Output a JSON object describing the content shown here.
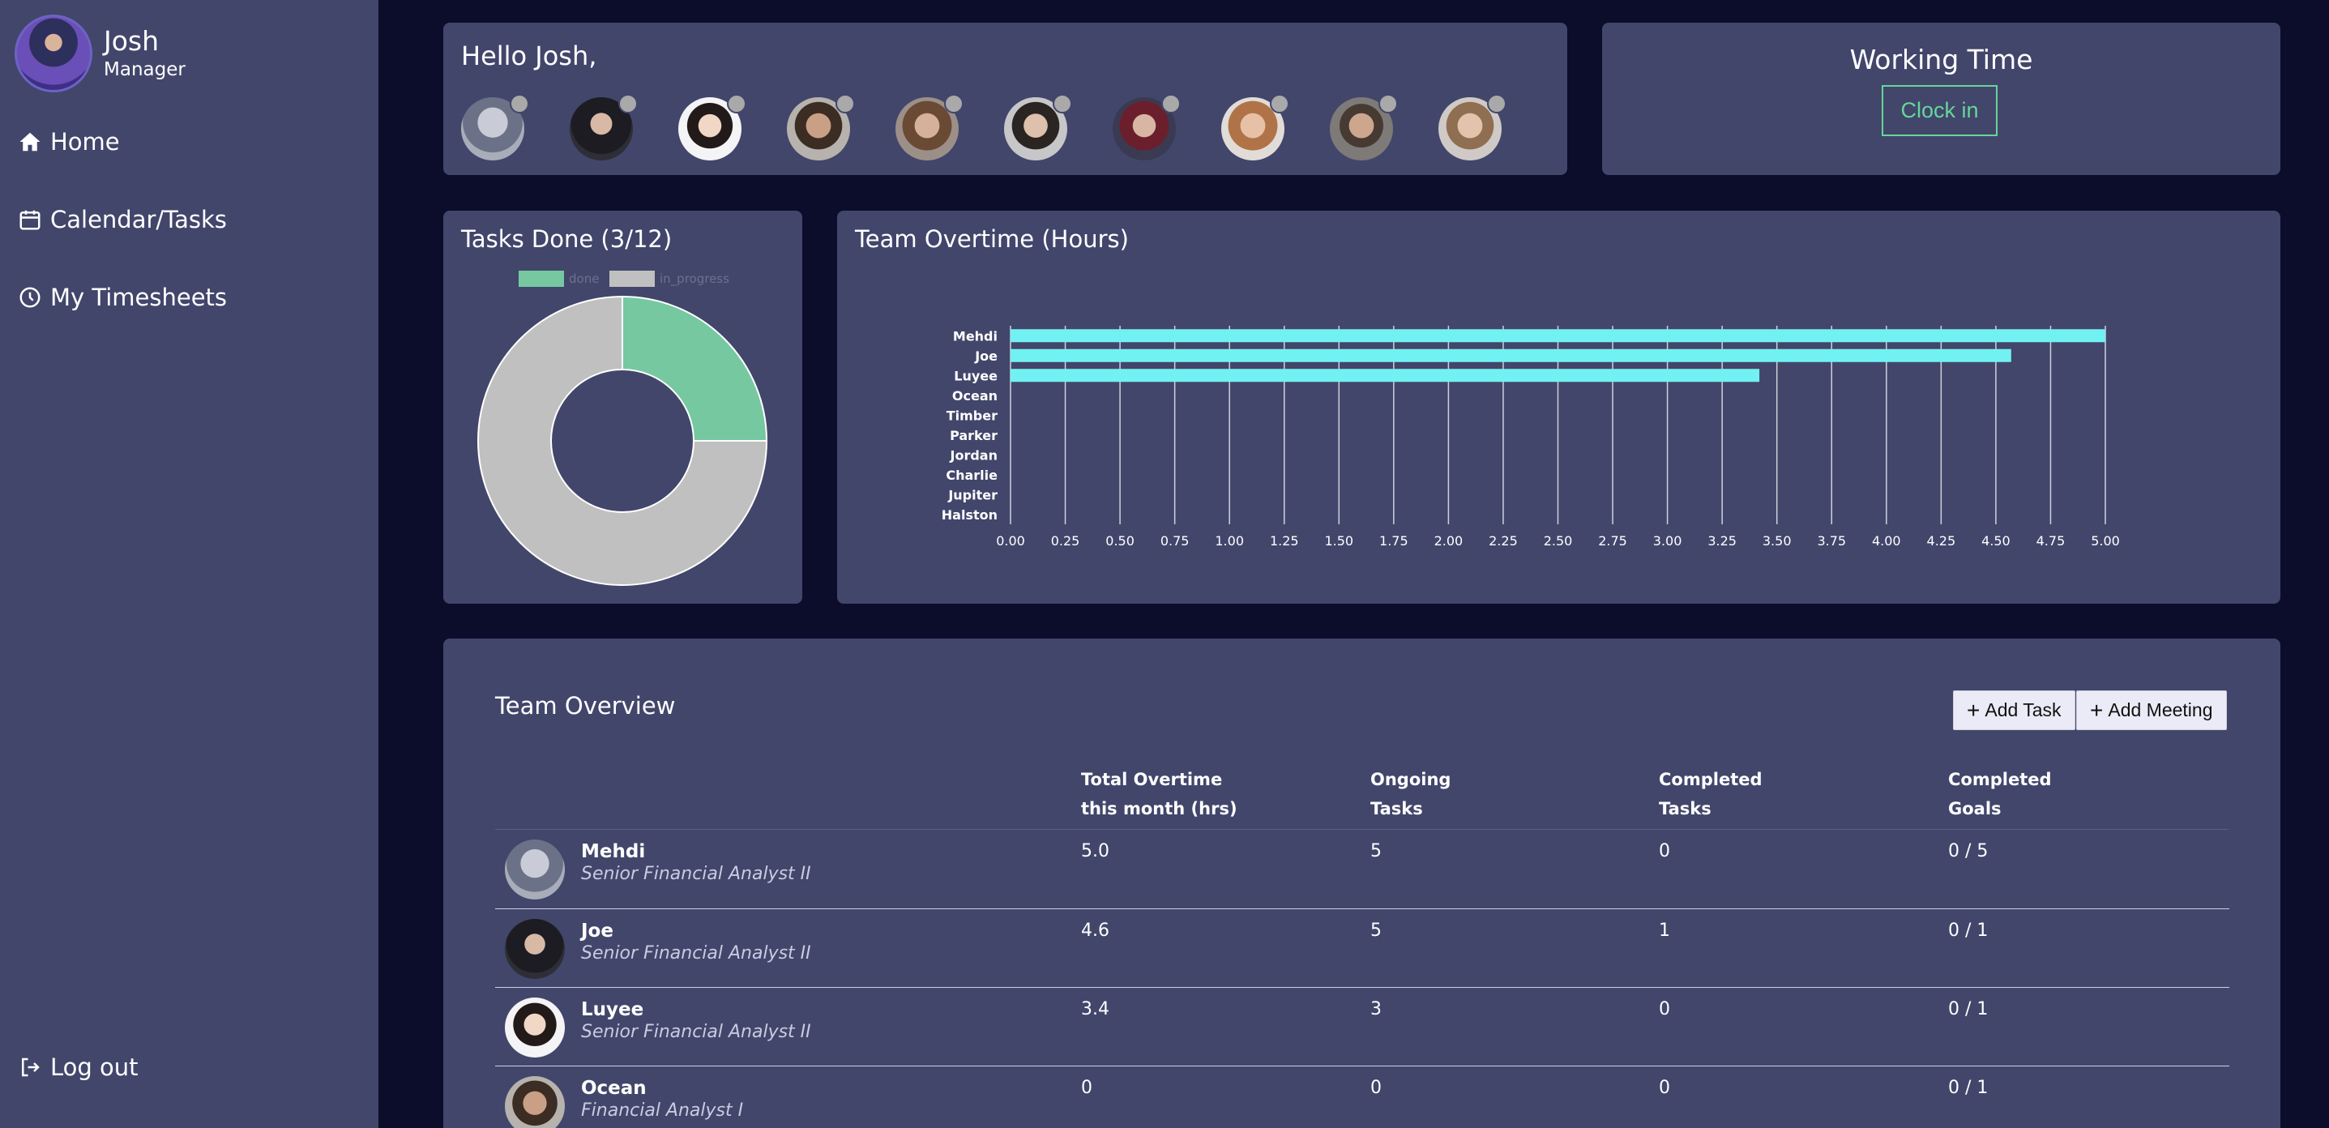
{
  "sidebar": {
    "user": {
      "name": "Josh",
      "role": "Manager"
    },
    "nav": [
      {
        "label": "Home",
        "icon": "home-icon"
      },
      {
        "label": "Calendar/Tasks",
        "icon": "calendar-icon"
      },
      {
        "label": "My Timesheets",
        "icon": "clock-icon"
      }
    ],
    "logout_label": "Log out"
  },
  "greeting": {
    "text": "Hello Josh,",
    "team_status_color": "#a9a9a9"
  },
  "working_time": {
    "title": "Working Time",
    "button_label": "Clock in",
    "accent": "#66d69a"
  },
  "tasks_done": {
    "title": "Tasks Done (3/12)",
    "legend": [
      {
        "label": "done",
        "color": "#76c8a0"
      },
      {
        "label": "in_progress",
        "color": "#c0c0c0"
      }
    ]
  },
  "overtime": {
    "title": "Team Overtime (Hours)"
  },
  "chart_data": [
    {
      "type": "pie",
      "title": "Tasks Done (3/12)",
      "labels": [
        "done",
        "in_progress"
      ],
      "values": [
        3,
        9
      ],
      "colors": [
        "#76c8a0",
        "#c0c0c0"
      ],
      "legend": "top"
    },
    {
      "type": "bar",
      "orientation": "horizontal",
      "title": "Team Overtime (Hours)",
      "categories": [
        "Mehdi",
        "Joe",
        "Luyee",
        "Ocean",
        "Timber",
        "Parker",
        "Jordan",
        "Charlie",
        "Jupiter",
        "Halston"
      ],
      "values": [
        5.0,
        4.57,
        3.42,
        0,
        0,
        0,
        0,
        0,
        0,
        0
      ],
      "xlim": [
        0,
        5
      ],
      "xticks": [
        "0.00",
        "0.25",
        "0.50",
        "0.75",
        "1.00",
        "1.25",
        "1.50",
        "1.75",
        "2.00",
        "2.25",
        "2.50",
        "2.75",
        "3.00",
        "3.25",
        "3.50",
        "3.75",
        "4.00",
        "4.25",
        "4.50",
        "4.75",
        "5.00"
      ],
      "grid": true,
      "bar_color": "#72f1f3"
    }
  ],
  "overview": {
    "title": "Team Overview",
    "add_task_label": "Add Task",
    "add_meeting_label": "Add Meeting",
    "columns": [
      {
        "line1": "Total Overtime",
        "line2": "this month (hrs)"
      },
      {
        "line1": "Ongoing",
        "line2": "Tasks"
      },
      {
        "line1": "Completed",
        "line2": "Tasks"
      },
      {
        "line1": "Completed",
        "line2": "Goals"
      }
    ],
    "rows": [
      {
        "name": "Mehdi",
        "title": "Senior Financial Analyst II",
        "overtime": "5.0",
        "ongoing": "5",
        "completed": "0",
        "goals": "0 / 5"
      },
      {
        "name": "Joe",
        "title": "Senior Financial Analyst II",
        "overtime": "4.6",
        "ongoing": "5",
        "completed": "1",
        "goals": "0 / 1"
      },
      {
        "name": "Luyee",
        "title": "Senior Financial Analyst II",
        "overtime": "3.4",
        "ongoing": "3",
        "completed": "0",
        "goals": "0 / 1"
      },
      {
        "name": "Ocean",
        "title": "Financial Analyst I",
        "overtime": "0",
        "ongoing": "0",
        "completed": "0",
        "goals": "0 / 1"
      }
    ]
  }
}
